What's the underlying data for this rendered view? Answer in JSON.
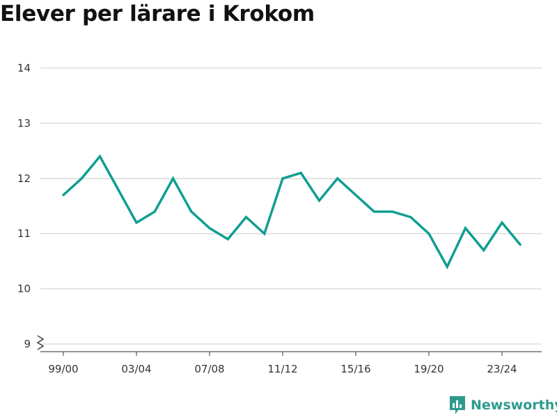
{
  "title": "Elever per lärare i Krokom",
  "brand": {
    "name": "Newsworthy",
    "icon": "newsworthy-logo-icon",
    "color": "#2e9a8c"
  },
  "chart_data": {
    "type": "line",
    "title": "Elever per lärare i Krokom",
    "xlabel": "",
    "ylabel": "",
    "x": [
      "99/00",
      "00/01",
      "01/02",
      "02/03",
      "03/04",
      "04/05",
      "05/06",
      "06/07",
      "07/08",
      "08/09",
      "09/10",
      "10/11",
      "11/12",
      "12/13",
      "13/14",
      "14/15",
      "15/16",
      "16/17",
      "17/18",
      "18/19",
      "19/20",
      "20/21",
      "21/22",
      "22/23",
      "23/24",
      "24/25"
    ],
    "x_tick_labels": [
      "99/00",
      "03/04",
      "07/08",
      "11/12",
      "15/16",
      "19/20",
      "23/24"
    ],
    "series": [
      {
        "values": [
          11.7,
          12.0,
          12.4,
          11.8,
          11.2,
          11.4,
          12.0,
          11.4,
          11.1,
          10.9,
          11.3,
          11.0,
          12.0,
          12.1,
          11.6,
          12.0,
          11.7,
          11.4,
          11.4,
          11.3,
          11.0,
          10.4,
          11.1,
          10.7,
          11.2,
          10.8
        ],
        "color": "#0f9e91"
      }
    ],
    "y_ticks": [
      9,
      10,
      11,
      12,
      13,
      14
    ],
    "ylim": [
      9,
      14
    ],
    "y_axis_break": true,
    "grid": true,
    "legend": "none"
  }
}
